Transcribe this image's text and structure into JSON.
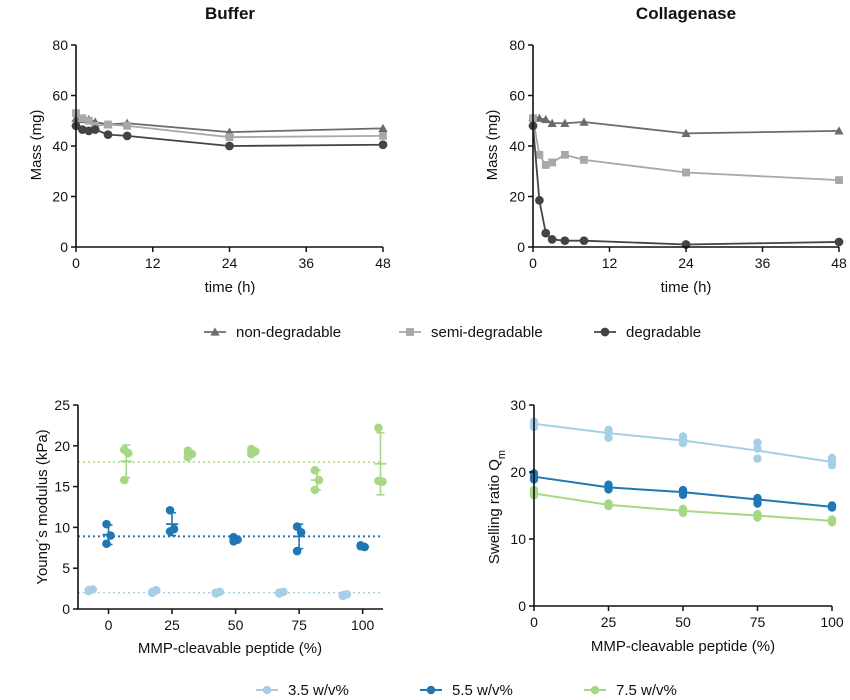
{
  "colors": {
    "non_degradable": "#6b6b6b",
    "semi_degradable": "#a8a8a8",
    "degradable": "#444444",
    "c35": "#a6cfe5",
    "c55": "#1f77b4",
    "c75": "#a6d785"
  },
  "chart_data": [
    {
      "type": "line",
      "title": "Buffer",
      "xlabel": "time (h)",
      "ylabel": "Mass (mg)",
      "xlim": [
        0,
        48
      ],
      "ylim": [
        0,
        80
      ],
      "xticks": [
        "0",
        "12",
        "24",
        "36",
        "48"
      ],
      "yticks": [
        "0",
        "20",
        "40",
        "60",
        "80"
      ],
      "series": [
        {
          "name": "non-degradable",
          "marker": "triangle",
          "color": "#6b6b6b",
          "x": [
            0,
            1,
            2,
            3,
            5,
            8,
            24,
            48
          ],
          "y": [
            51,
            50.5,
            50.5,
            49.5,
            48.5,
            49,
            45.5,
            47
          ]
        },
        {
          "name": "semi-degradable",
          "marker": "square",
          "color": "#a8a8a8",
          "x": [
            0,
            1,
            2,
            3,
            5,
            8,
            24,
            48
          ],
          "y": [
            53,
            51,
            50,
            48,
            48.5,
            48,
            43.5,
            44
          ]
        },
        {
          "name": "degradable",
          "marker": "circle",
          "color": "#444444",
          "x": [
            0,
            1,
            2,
            3,
            5,
            8,
            24,
            48
          ],
          "y": [
            48,
            46.5,
            46,
            46.5,
            44.5,
            44,
            40,
            40.5
          ]
        }
      ]
    },
    {
      "type": "line",
      "title": "Collagenase",
      "xlabel": "time (h)",
      "ylabel": "Mass (mg)",
      "xlim": [
        0,
        48
      ],
      "ylim": [
        0,
        80
      ],
      "xticks": [
        "0",
        "12",
        "24",
        "36",
        "48"
      ],
      "yticks": [
        "0",
        "20",
        "40",
        "60",
        "80"
      ],
      "series": [
        {
          "name": "non-degradable",
          "marker": "triangle",
          "color": "#6b6b6b",
          "x": [
            0,
            1,
            2,
            3,
            5,
            8,
            24,
            48
          ],
          "y": [
            51.5,
            51,
            50.5,
            49,
            49,
            49.5,
            45,
            46
          ]
        },
        {
          "name": "semi-degradable",
          "marker": "square",
          "color": "#a8a8a8",
          "x": [
            0,
            1,
            2,
            3,
            5,
            8,
            24,
            48
          ],
          "y": [
            51,
            36.5,
            32.5,
            33.5,
            36.5,
            34.5,
            29.5,
            26.5
          ]
        },
        {
          "name": "degradable",
          "marker": "circle",
          "color": "#444444",
          "x": [
            0,
            1,
            2,
            3,
            5,
            8,
            24,
            48
          ],
          "y": [
            48,
            18.5,
            5.5,
            3,
            2.5,
            2.5,
            1,
            2
          ]
        }
      ]
    },
    {
      "type": "scatter",
      "xlabel": "MMP-cleavable peptide (%)",
      "ylabel": "Young´s modulus (kPa)",
      "xlim": [
        -12,
        108
      ],
      "ylim": [
        0,
        25
      ],
      "xticks": [
        "0",
        "25",
        "50",
        "75",
        "100"
      ],
      "yticks": [
        "0",
        "5",
        "10",
        "15",
        "20",
        "25"
      ],
      "reference_lines": [
        {
          "series": "3.5 w/v%",
          "y": 2.0,
          "color": "#a6cfe5"
        },
        {
          "series": "5.5 w/v%",
          "y": 8.9,
          "color": "#1f77b4"
        },
        {
          "series": "7.5 w/v%",
          "y": 18.0,
          "color": "#a6d785"
        }
      ],
      "groups": [
        {
          "series": "3.5 w/v%",
          "color": "#a6cfe5",
          "x": -7,
          "points": [
            2.3,
            2.4,
            2.2
          ],
          "mean": 2.3,
          "sd": 0.1
        },
        {
          "series": "3.5 w/v%",
          "color": "#a6cfe5",
          "x": 18,
          "points": [
            2.0,
            2.3,
            2.1
          ],
          "mean": 2.1,
          "sd": 0.15
        },
        {
          "series": "3.5 w/v%",
          "color": "#a6cfe5",
          "x": 43,
          "points": [
            2.0,
            2.1,
            1.9
          ],
          "mean": 2.0,
          "sd": 0.1
        },
        {
          "series": "3.5 w/v%",
          "color": "#a6cfe5",
          "x": 68,
          "points": [
            2.0,
            2.1,
            1.9
          ],
          "mean": 2.0,
          "sd": 0.1
        },
        {
          "series": "3.5 w/v%",
          "color": "#a6cfe5",
          "x": 93,
          "points": [
            1.6,
            1.8,
            1.7
          ],
          "mean": 1.7,
          "sd": 0.1
        },
        {
          "series": "5.5 w/v%",
          "color": "#1f77b4",
          "x": 0,
          "points": [
            10.4,
            9.0,
            8.0
          ],
          "mean": 9.1,
          "sd": 1.2
        },
        {
          "series": "5.5 w/v%",
          "color": "#1f77b4",
          "x": 25,
          "points": [
            12.1,
            9.8,
            9.5
          ],
          "mean": 10.4,
          "sd": 1.4
        },
        {
          "series": "5.5 w/v%",
          "color": "#1f77b4",
          "x": 50,
          "points": [
            8.8,
            8.5,
            8.3
          ],
          "mean": 8.5,
          "sd": 0.25
        },
        {
          "series": "5.5 w/v%",
          "color": "#1f77b4",
          "x": 75,
          "points": [
            10.1,
            9.4,
            7.1
          ],
          "mean": 8.9,
          "sd": 1.5
        },
        {
          "series": "5.5 w/v%",
          "color": "#1f77b4",
          "x": 100,
          "points": [
            7.8,
            7.6,
            7.7
          ],
          "mean": 7.7,
          "sd": 0.1
        },
        {
          "series": "7.5 w/v%",
          "color": "#a6d785",
          "x": 7,
          "points": [
            19.5,
            19.1,
            15.8
          ],
          "mean": 18.1,
          "sd": 2.0
        },
        {
          "series": "7.5 w/v%",
          "color": "#a6d785",
          "x": 32,
          "points": [
            19.4,
            19.0,
            18.6
          ],
          "mean": 19.0,
          "sd": 0.4
        },
        {
          "series": "7.5 w/v%",
          "color": "#a6d785",
          "x": 57,
          "points": [
            19.6,
            19.3,
            19.0
          ],
          "mean": 19.3,
          "sd": 0.3
        },
        {
          "series": "7.5 w/v%",
          "color": "#a6d785",
          "x": 82,
          "points": [
            17.0,
            15.8,
            14.6
          ],
          "mean": 15.8,
          "sd": 1.2
        },
        {
          "series": "7.5 w/v%",
          "color": "#a6d785",
          "x": 107,
          "points": [
            22.2,
            15.6,
            15.7
          ],
          "mean": 17.8,
          "sd": 3.8
        }
      ]
    },
    {
      "type": "line",
      "xlabel": "MMP-cleavable peptide (%)",
      "ylabel": "Swelling ratio Q",
      "ylabel_subscript": "m",
      "xlim": [
        0,
        100
      ],
      "ylim": [
        0,
        30
      ],
      "xticks": [
        "0",
        "25",
        "50",
        "75",
        "100"
      ],
      "yticks": [
        "0",
        "10",
        "20",
        "30"
      ],
      "series": [
        {
          "name": "3.5 w/v%",
          "color": "#a6cfe5",
          "x": [
            0,
            25,
            50,
            75,
            100
          ],
          "y": [
            27.2,
            25.8,
            24.7,
            23.2,
            21.5
          ],
          "replicates": [
            [
              27.5,
              27.0,
              26.7
            ],
            [
              26.3,
              25.9,
              25.1
            ],
            [
              25.3,
              24.9,
              24.3
            ],
            [
              24.4,
              23.5,
              22.0
            ],
            [
              22.1,
              21.6,
              21.0
            ]
          ]
        },
        {
          "name": "5.5 w/v%",
          "color": "#1f77b4",
          "x": [
            0,
            25,
            50,
            75,
            100
          ],
          "y": [
            19.3,
            17.7,
            17.0,
            15.9,
            14.8
          ],
          "replicates": [
            [
              19.8,
              19.3,
              18.9
            ],
            [
              18.1,
              17.6,
              17.4
            ],
            [
              17.3,
              17.1,
              16.6
            ],
            [
              16.1,
              15.9,
              15.3
            ],
            [
              15.0,
              14.9,
              14.7
            ]
          ]
        },
        {
          "name": "7.5 w/v%",
          "color": "#a6d785",
          "x": [
            0,
            25,
            50,
            75,
            100
          ],
          "y": [
            16.8,
            15.1,
            14.2,
            13.5,
            12.7
          ],
          "replicates": [
            [
              17.3,
              16.8,
              16.5
            ],
            [
              15.3,
              15.1,
              14.9
            ],
            [
              14.5,
              14.2,
              13.9
            ],
            [
              13.7,
              13.5,
              13.2
            ],
            [
              12.9,
              12.7,
              12.5
            ]
          ]
        }
      ]
    }
  ],
  "legend_top": [
    {
      "label": "non-degradable",
      "marker": "triangle",
      "color": "#6b6b6b"
    },
    {
      "label": "semi-degradable",
      "marker": "square",
      "color": "#a8a8a8"
    },
    {
      "label": "degradable",
      "marker": "circle",
      "color": "#444444"
    }
  ],
  "legend_bottom": [
    {
      "label": "3.5 w/v%",
      "color": "#a6cfe5"
    },
    {
      "label": "5.5 w/v%",
      "color": "#1f77b4"
    },
    {
      "label": "7.5 w/v%",
      "color": "#a6d785"
    }
  ]
}
